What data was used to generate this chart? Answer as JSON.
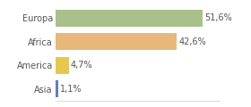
{
  "categories": [
    "Europa",
    "Africa",
    "America",
    "Asia"
  ],
  "values": [
    51.6,
    42.6,
    4.7,
    1.1
  ],
  "labels": [
    "51,6%",
    "42,6%",
    "4,7%",
    "1,1%"
  ],
  "bar_colors": [
    "#a8c08a",
    "#e8b87a",
    "#e8c84a",
    "#6080c0"
  ],
  "background_color": "#ffffff",
  "xlim": [
    0,
    58
  ],
  "bar_height": 0.72,
  "label_fontsize": 7.0,
  "category_fontsize": 7.0,
  "text_color": "#555555"
}
